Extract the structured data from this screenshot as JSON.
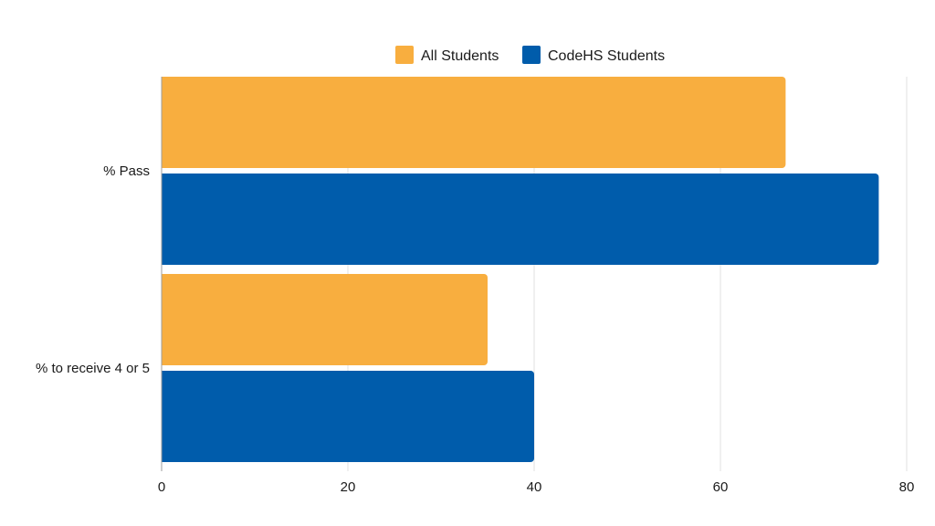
{
  "chart_data": {
    "type": "bar",
    "orientation": "horizontal",
    "title": "",
    "xlabel": "",
    "ylabel": "",
    "categories": [
      "% Pass",
      "% to receive 4 or 5"
    ],
    "series": [
      {
        "name": "All Students",
        "color": "#F8AE3F",
        "values": [
          67,
          35
        ]
      },
      {
        "name": "CodeHS Students",
        "color": "#005CAB",
        "values": [
          77,
          40
        ]
      }
    ],
    "xlim": [
      0,
      80
    ],
    "xticks": [
      "0",
      "20",
      "40",
      "60",
      "80"
    ],
    "grid": true,
    "legend_position": "top"
  }
}
